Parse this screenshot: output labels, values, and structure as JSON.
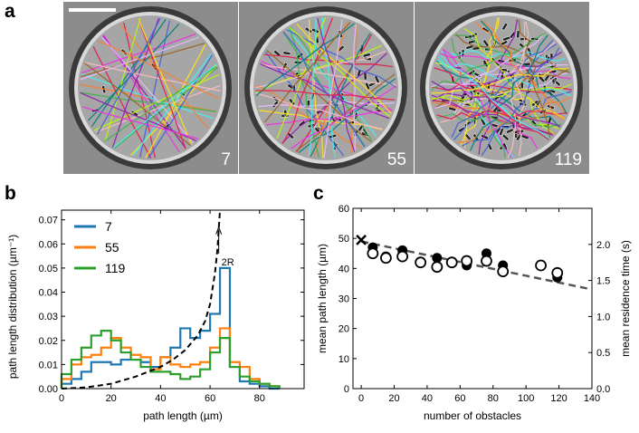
{
  "panels": {
    "a": {
      "letter": "a",
      "images": [
        {
          "label": "7",
          "obstacles": 7,
          "paths": 34
        },
        {
          "label": "55",
          "obstacles": 55,
          "paths": 40
        },
        {
          "label": "119",
          "obstacles": 119,
          "paths": 46
        }
      ]
    },
    "b": {
      "letter": "b"
    },
    "c": {
      "letter": "c"
    }
  },
  "colors": {
    "s7": "#1f77b4",
    "s55": "#ff7f0e",
    "s119": "#2ca02c",
    "fit": "#555555"
  },
  "chart_data": [
    {
      "type": "line",
      "xlabel": "path length (µm)",
      "ylabel": "path length distribution (µm⁻¹)",
      "xlim": [
        0,
        98
      ],
      "ylim": [
        0,
        0.074
      ],
      "xticks": [
        "0",
        "20",
        "40",
        "60",
        "80"
      ],
      "yticks": [
        "0.00",
        "0.01",
        "0.02",
        "0.03",
        "0.04",
        "0.05",
        "0.06",
        "0.07"
      ],
      "bin_edges": [
        0,
        4,
        8,
        12,
        16,
        20,
        24,
        28,
        32,
        36,
        40,
        44,
        48,
        52,
        56,
        60,
        64,
        68,
        72,
        76,
        80,
        84,
        88
      ],
      "series": [
        {
          "name": "7",
          "values": [
            0.002,
            0.004,
            0.007,
            0.011,
            0.011,
            0.01,
            0.012,
            0.012,
            0.011,
            0.009,
            0.013,
            0.017,
            0.025,
            0.021,
            0.024,
            0.031,
            0.05,
            0.009,
            0.003,
            0.002,
            0.001,
            0.0
          ]
        },
        {
          "name": "55",
          "values": [
            0.004,
            0.01,
            0.013,
            0.014,
            0.017,
            0.021,
            0.017,
            0.014,
            0.013,
            0.008,
            0.013,
            0.01,
            0.009,
            0.01,
            0.011,
            0.017,
            0.025,
            0.011,
            0.009,
            0.004,
            0.002,
            0.001
          ]
        },
        {
          "name": "119",
          "values": [
            0.006,
            0.012,
            0.017,
            0.022,
            0.024,
            0.02,
            0.015,
            0.012,
            0.009,
            0.007,
            0.007,
            0.006,
            0.004,
            0.005,
            0.008,
            0.015,
            0.021,
            0.009,
            0.005,
            0.003,
            0.002,
            0.001
          ]
        }
      ],
      "theory_curve": {
        "label": "2R",
        "x": [
          0,
          10,
          20,
          30,
          40,
          45,
          50,
          55,
          58,
          60,
          62,
          63,
          64
        ],
        "y": [
          0.0,
          0.0005,
          0.002,
          0.005,
          0.009,
          0.012,
          0.016,
          0.022,
          0.028,
          0.035,
          0.048,
          0.058,
          0.074
        ]
      }
    },
    {
      "type": "scatter",
      "xlabel": "number of obstacles",
      "ylabel": "mean path length (µm)",
      "y2label": "mean residence time (s)",
      "xlim": [
        -5,
        140
      ],
      "ylim": [
        0,
        60
      ],
      "y2lim": [
        0,
        2.5
      ],
      "xticks": [
        "0",
        "20",
        "40",
        "60",
        "80",
        "100",
        "120",
        "140"
      ],
      "yticks": [
        "0",
        "10",
        "20",
        "30",
        "40",
        "50",
        "60"
      ],
      "y2ticks": [
        "0.0",
        "0.5",
        "1.0",
        "1.5",
        "2.0"
      ],
      "series": [
        {
          "name": "mean path length",
          "marker": "filled",
          "x": [
            7,
            15,
            25,
            46,
            64,
            76,
            86,
            119
          ],
          "y": [
            47,
            44,
            46,
            43.5,
            41,
            45,
            41,
            37
          ]
        },
        {
          "name": "mean residence time",
          "marker": "open",
          "x": [
            7,
            15,
            25,
            36,
            46,
            55,
            64,
            76,
            86,
            109,
            119
          ],
          "y": [
            45,
            43.5,
            44,
            42,
            40.5,
            42,
            42.5,
            42.5,
            39,
            41,
            38.5
          ]
        },
        {
          "name": "no obstacles",
          "marker": "x",
          "x": [
            0
          ],
          "y": [
            49.5
          ]
        }
      ],
      "fit_line": {
        "x": [
          0,
          140
        ],
        "y": [
          49,
          33
        ]
      }
    }
  ]
}
